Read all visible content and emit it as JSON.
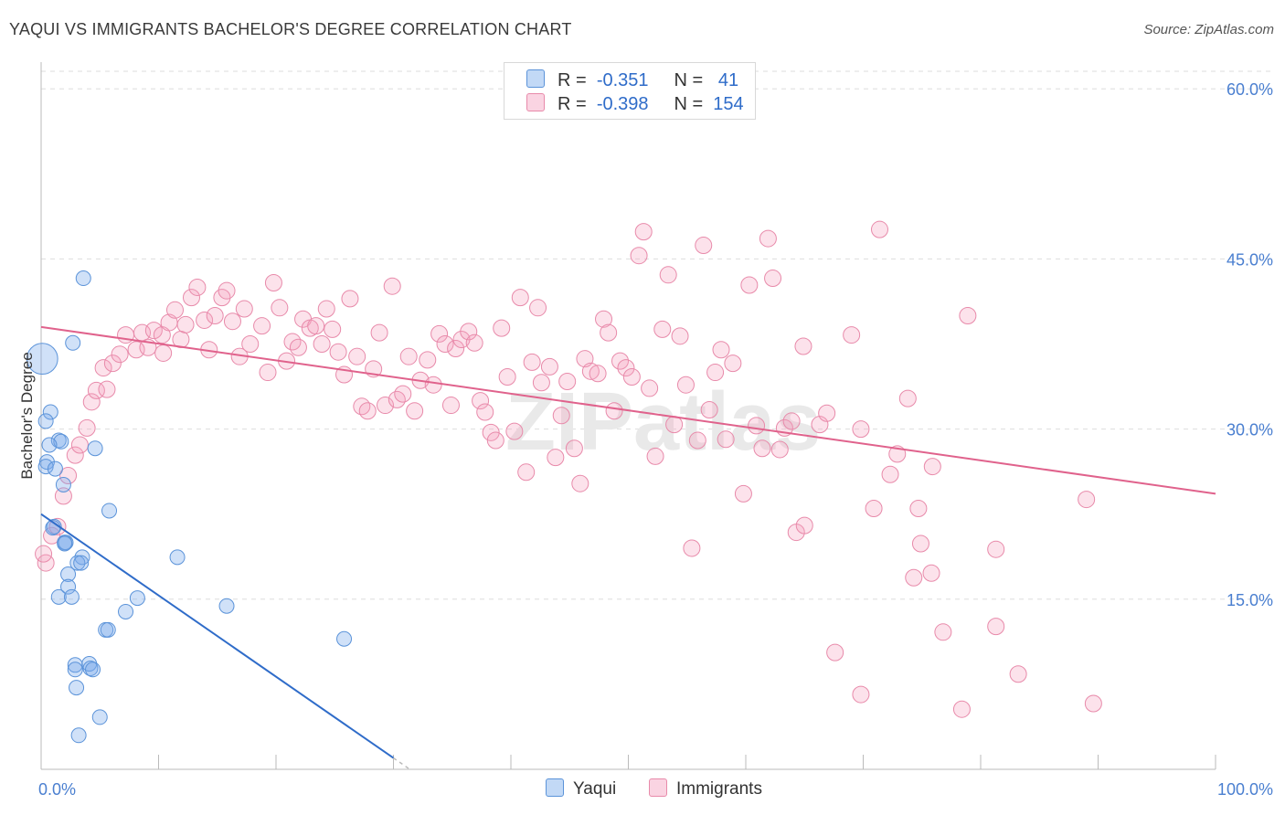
{
  "title": "YAQUI VS IMMIGRANTS BACHELOR'S DEGREE CORRELATION CHART",
  "source": "Source: ZipAtlas.com",
  "watermark": "ZIPatlas",
  "colors": {
    "yaqui_fill": "rgba(120,170,235,0.35)",
    "yaqui_stroke": "#5b93d9",
    "yaqui_line": "#2f6cc9",
    "imm_fill": "rgba(245,160,190,0.30)",
    "imm_stroke": "#e88aaa",
    "imm_line": "#e0628c",
    "tick": "#4a7fd0",
    "grid": "#dddddd"
  },
  "legend": {
    "rows": [
      {
        "r_label": "R =",
        "r_value": "-0.351",
        "n_label": "N =",
        "n_value": "41"
      },
      {
        "r_label": "R =",
        "r_value": "-0.398",
        "n_label": "N =",
        "n_value": "154"
      }
    ]
  },
  "bottom_legend": {
    "yaqui": "Yaqui",
    "immigrants": "Immigrants"
  },
  "chart_data": {
    "type": "scatter",
    "xlabel": "",
    "ylabel": "Bachelor's Degree",
    "xlim": [
      0,
      100
    ],
    "ylim": [
      0,
      63
    ],
    "x_tick_labels": [
      "0.0%",
      "100.0%"
    ],
    "y_ticks": [
      15,
      30,
      45,
      60
    ],
    "y_tick_labels": [
      "15.0%",
      "30.0%",
      "45.0%",
      "60.0%"
    ],
    "series": [
      {
        "name": "Yaqui",
        "r": -0.351,
        "n": 41,
        "trend": {
          "x0": 0,
          "y0": 22.5,
          "x1": 30.0,
          "y1": 1.0,
          "dash_to_x": 31.5
        },
        "points": [
          {
            "x": 0.1,
            "y": 36.2,
            "s": 3
          },
          {
            "x": 0.8,
            "y": 31.5
          },
          {
            "x": 0.4,
            "y": 30.7
          },
          {
            "x": 1.5,
            "y": 29.0
          },
          {
            "x": 1.7,
            "y": 28.9
          },
          {
            "x": 0.7,
            "y": 28.6
          },
          {
            "x": 0.5,
            "y": 27.1
          },
          {
            "x": 0.4,
            "y": 26.7
          },
          {
            "x": 1.2,
            "y": 26.5
          },
          {
            "x": 4.6,
            "y": 28.3
          },
          {
            "x": 1.9,
            "y": 25.1
          },
          {
            "x": 5.8,
            "y": 22.8
          },
          {
            "x": 1.1,
            "y": 21.4
          },
          {
            "x": 2.0,
            "y": 20.0
          },
          {
            "x": 2.1,
            "y": 20.0
          },
          {
            "x": 3.5,
            "y": 18.7
          },
          {
            "x": 11.6,
            "y": 18.7
          },
          {
            "x": 3.1,
            "y": 18.2
          },
          {
            "x": 3.4,
            "y": 18.2
          },
          {
            "x": 2.3,
            "y": 17.2
          },
          {
            "x": 2.3,
            "y": 16.1
          },
          {
            "x": 1.5,
            "y": 15.2
          },
          {
            "x": 2.6,
            "y": 15.2
          },
          {
            "x": 8.2,
            "y": 15.1
          },
          {
            "x": 7.2,
            "y": 13.9
          },
          {
            "x": 15.8,
            "y": 14.4
          },
          {
            "x": 5.5,
            "y": 12.3
          },
          {
            "x": 5.7,
            "y": 12.3
          },
          {
            "x": 25.8,
            "y": 11.5
          },
          {
            "x": 2.9,
            "y": 9.2
          },
          {
            "x": 4.1,
            "y": 9.3
          },
          {
            "x": 4.2,
            "y": 8.9
          },
          {
            "x": 2.9,
            "y": 8.8
          },
          {
            "x": 4.4,
            "y": 8.8
          },
          {
            "x": 3.0,
            "y": 7.2
          },
          {
            "x": 5.0,
            "y": 4.6
          },
          {
            "x": 3.2,
            "y": 3.0
          },
          {
            "x": 3.6,
            "y": 43.3
          },
          {
            "x": 2.7,
            "y": 37.6
          },
          {
            "x": 1.0,
            "y": 21.3
          },
          {
            "x": 2.0,
            "y": 19.9
          }
        ]
      },
      {
        "name": "Immigrants",
        "r": -0.398,
        "n": 154,
        "trend": {
          "x0": 0,
          "y0": 39.0,
          "x1": 100,
          "y1": 24.3
        },
        "points": [
          {
            "x": 0.4,
            "y": 18.2
          },
          {
            "x": 0.9,
            "y": 20.6
          },
          {
            "x": 1.4,
            "y": 21.4
          },
          {
            "x": 1.9,
            "y": 24.1
          },
          {
            "x": 2.3,
            "y": 25.9
          },
          {
            "x": 2.9,
            "y": 27.7
          },
          {
            "x": 3.3,
            "y": 28.6
          },
          {
            "x": 3.9,
            "y": 30.1
          },
          {
            "x": 4.3,
            "y": 32.4
          },
          {
            "x": 4.7,
            "y": 33.4
          },
          {
            "x": 5.6,
            "y": 33.5
          },
          {
            "x": 5.3,
            "y": 35.4
          },
          {
            "x": 6.1,
            "y": 35.8
          },
          {
            "x": 6.7,
            "y": 36.6
          },
          {
            "x": 7.2,
            "y": 38.3
          },
          {
            "x": 8.1,
            "y": 37.0
          },
          {
            "x": 8.6,
            "y": 38.5
          },
          {
            "x": 9.1,
            "y": 37.2
          },
          {
            "x": 9.6,
            "y": 38.7
          },
          {
            "x": 10.3,
            "y": 38.3
          },
          {
            "x": 10.4,
            "y": 36.7
          },
          {
            "x": 10.9,
            "y": 39.4
          },
          {
            "x": 11.4,
            "y": 40.5
          },
          {
            "x": 11.9,
            "y": 37.9
          },
          {
            "x": 12.3,
            "y": 39.2
          },
          {
            "x": 12.8,
            "y": 41.6
          },
          {
            "x": 13.3,
            "y": 42.5
          },
          {
            "x": 13.9,
            "y": 39.6
          },
          {
            "x": 14.3,
            "y": 37.0
          },
          {
            "x": 14.8,
            "y": 40.0
          },
          {
            "x": 15.4,
            "y": 41.6
          },
          {
            "x": 15.8,
            "y": 42.2
          },
          {
            "x": 16.3,
            "y": 39.5
          },
          {
            "x": 16.9,
            "y": 36.4
          },
          {
            "x": 17.3,
            "y": 40.6
          },
          {
            "x": 17.8,
            "y": 37.5
          },
          {
            "x": 18.8,
            "y": 39.1
          },
          {
            "x": 19.3,
            "y": 35.0
          },
          {
            "x": 19.8,
            "y": 42.9
          },
          {
            "x": 20.3,
            "y": 40.7
          },
          {
            "x": 20.9,
            "y": 36.0
          },
          {
            "x": 21.4,
            "y": 37.7
          },
          {
            "x": 21.9,
            "y": 37.2
          },
          {
            "x": 22.3,
            "y": 39.7
          },
          {
            "x": 22.9,
            "y": 38.9
          },
          {
            "x": 23.4,
            "y": 39.1
          },
          {
            "x": 23.9,
            "y": 37.5
          },
          {
            "x": 24.3,
            "y": 40.6
          },
          {
            "x": 24.8,
            "y": 38.8
          },
          {
            "x": 25.3,
            "y": 36.8
          },
          {
            "x": 25.8,
            "y": 34.8
          },
          {
            "x": 26.3,
            "y": 41.5
          },
          {
            "x": 26.9,
            "y": 36.4
          },
          {
            "x": 27.3,
            "y": 32.0
          },
          {
            "x": 27.8,
            "y": 31.6
          },
          {
            "x": 28.3,
            "y": 35.3
          },
          {
            "x": 28.8,
            "y": 38.5
          },
          {
            "x": 29.3,
            "y": 32.1
          },
          {
            "x": 29.9,
            "y": 42.6
          },
          {
            "x": 30.3,
            "y": 32.6
          },
          {
            "x": 30.8,
            "y": 33.1
          },
          {
            "x": 31.3,
            "y": 36.4
          },
          {
            "x": 31.8,
            "y": 31.6
          },
          {
            "x": 32.3,
            "y": 34.3
          },
          {
            "x": 32.9,
            "y": 36.1
          },
          {
            "x": 33.4,
            "y": 33.9
          },
          {
            "x": 33.9,
            "y": 38.4
          },
          {
            "x": 34.4,
            "y": 37.5
          },
          {
            "x": 34.9,
            "y": 32.1
          },
          {
            "x": 35.3,
            "y": 37.1
          },
          {
            "x": 35.8,
            "y": 37.9
          },
          {
            "x": 36.4,
            "y": 38.6
          },
          {
            "x": 36.9,
            "y": 37.6
          },
          {
            "x": 37.4,
            "y": 32.5
          },
          {
            "x": 37.8,
            "y": 31.5
          },
          {
            "x": 38.3,
            "y": 29.7
          },
          {
            "x": 38.7,
            "y": 29.0
          },
          {
            "x": 39.2,
            "y": 38.9
          },
          {
            "x": 39.7,
            "y": 34.6
          },
          {
            "x": 40.3,
            "y": 29.8
          },
          {
            "x": 40.8,
            "y": 41.6
          },
          {
            "x": 41.3,
            "y": 26.2
          },
          {
            "x": 41.8,
            "y": 35.9
          },
          {
            "x": 42.3,
            "y": 40.7
          },
          {
            "x": 42.6,
            "y": 34.1
          },
          {
            "x": 43.3,
            "y": 35.5
          },
          {
            "x": 43.8,
            "y": 27.5
          },
          {
            "x": 44.3,
            "y": 31.2
          },
          {
            "x": 44.8,
            "y": 34.2
          },
          {
            "x": 45.4,
            "y": 28.3
          },
          {
            "x": 45.9,
            "y": 25.2
          },
          {
            "x": 46.3,
            "y": 36.2
          },
          {
            "x": 46.8,
            "y": 35.1
          },
          {
            "x": 47.4,
            "y": 34.9
          },
          {
            "x": 47.9,
            "y": 39.7
          },
          {
            "x": 48.3,
            "y": 38.5
          },
          {
            "x": 48.8,
            "y": 31.6
          },
          {
            "x": 49.3,
            "y": 36.0
          },
          {
            "x": 49.8,
            "y": 35.4
          },
          {
            "x": 50.3,
            "y": 34.6
          },
          {
            "x": 50.9,
            "y": 45.3
          },
          {
            "x": 51.3,
            "y": 47.4
          },
          {
            "x": 51.8,
            "y": 33.6
          },
          {
            "x": 52.3,
            "y": 27.6
          },
          {
            "x": 52.9,
            "y": 38.8
          },
          {
            "x": 53.4,
            "y": 43.6
          },
          {
            "x": 53.9,
            "y": 30.4
          },
          {
            "x": 54.4,
            "y": 38.2
          },
          {
            "x": 54.9,
            "y": 33.9
          },
          {
            "x": 55.4,
            "y": 19.5
          },
          {
            "x": 55.9,
            "y": 29.0
          },
          {
            "x": 56.4,
            "y": 46.2
          },
          {
            "x": 56.9,
            "y": 31.7
          },
          {
            "x": 57.4,
            "y": 35.0
          },
          {
            "x": 57.9,
            "y": 37.0
          },
          {
            "x": 58.3,
            "y": 29.1
          },
          {
            "x": 58.9,
            "y": 35.8
          },
          {
            "x": 59.8,
            "y": 24.3
          },
          {
            "x": 60.3,
            "y": 42.7
          },
          {
            "x": 60.9,
            "y": 30.3
          },
          {
            "x": 61.4,
            "y": 28.3
          },
          {
            "x": 61.9,
            "y": 46.8
          },
          {
            "x": 62.3,
            "y": 43.3
          },
          {
            "x": 62.9,
            "y": 28.2
          },
          {
            "x": 63.3,
            "y": 30.1
          },
          {
            "x": 63.9,
            "y": 30.7
          },
          {
            "x": 64.3,
            "y": 20.9
          },
          {
            "x": 64.9,
            "y": 37.3
          },
          {
            "x": 65.0,
            "y": 21.5
          },
          {
            "x": 66.3,
            "y": 30.4
          },
          {
            "x": 66.9,
            "y": 31.4
          },
          {
            "x": 67.6,
            "y": 10.3
          },
          {
            "x": 69.0,
            "y": 38.3
          },
          {
            "x": 69.8,
            "y": 30.0
          },
          {
            "x": 69.8,
            "y": 6.6
          },
          {
            "x": 70.9,
            "y": 23.0
          },
          {
            "x": 71.4,
            "y": 47.6
          },
          {
            "x": 72.3,
            "y": 26.0
          },
          {
            "x": 72.9,
            "y": 27.8
          },
          {
            "x": 73.8,
            "y": 32.7
          },
          {
            "x": 74.3,
            "y": 16.9
          },
          {
            "x": 74.7,
            "y": 23.0
          },
          {
            "x": 74.9,
            "y": 19.9
          },
          {
            "x": 75.9,
            "y": 26.7
          },
          {
            "x": 75.8,
            "y": 17.3
          },
          {
            "x": 76.8,
            "y": 12.1
          },
          {
            "x": 78.4,
            "y": 5.3
          },
          {
            "x": 78.9,
            "y": 40.0
          },
          {
            "x": 81.3,
            "y": 19.4
          },
          {
            "x": 81.3,
            "y": 12.6
          },
          {
            "x": 83.2,
            "y": 8.4
          },
          {
            "x": 89.0,
            "y": 23.8
          },
          {
            "x": 89.6,
            "y": 5.8
          },
          {
            "x": 0.2,
            "y": 19.0
          }
        ]
      }
    ]
  }
}
